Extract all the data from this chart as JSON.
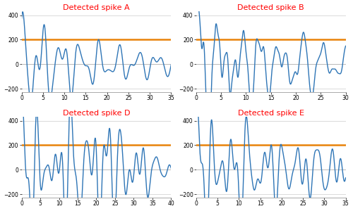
{
  "subplots": [
    {
      "title": "Detected spike A",
      "xlim": [
        0,
        35
      ],
      "ylim": [
        -230,
        430
      ],
      "yticks": [
        -200,
        0,
        200,
        400
      ],
      "xticks": [
        0,
        5,
        10,
        15,
        20,
        25,
        30,
        35
      ],
      "threshold": 200
    },
    {
      "title": "Detected spike B",
      "xlim": [
        0,
        30
      ],
      "ylim": [
        -230,
        430
      ],
      "yticks": [
        -200,
        0,
        200,
        400
      ],
      "xticks": [
        0,
        5,
        10,
        15,
        20,
        25,
        30
      ],
      "threshold": 200
    },
    {
      "title": "Detected spike D",
      "xlim": [
        0,
        40
      ],
      "ylim": [
        -230,
        430
      ],
      "yticks": [
        -200,
        0,
        200,
        400
      ],
      "xticks": [
        0,
        5,
        10,
        15,
        20,
        25,
        30,
        35,
        40
      ],
      "threshold": 200
    },
    {
      "title": "Detected spike E",
      "xlim": [
        0,
        35
      ],
      "ylim": [
        -230,
        430
      ],
      "yticks": [
        -200,
        0,
        200,
        400
      ],
      "xticks": [
        0,
        5,
        10,
        15,
        20,
        25,
        30,
        35
      ],
      "threshold": 200
    }
  ],
  "line_color": "#2E75B6",
  "threshold_color": "#E8820A",
  "title_color": "red",
  "background_color": "#ffffff",
  "title_fontsize": 8,
  "threshold_linewidth": 1.8,
  "line_linewidth": 1.0
}
